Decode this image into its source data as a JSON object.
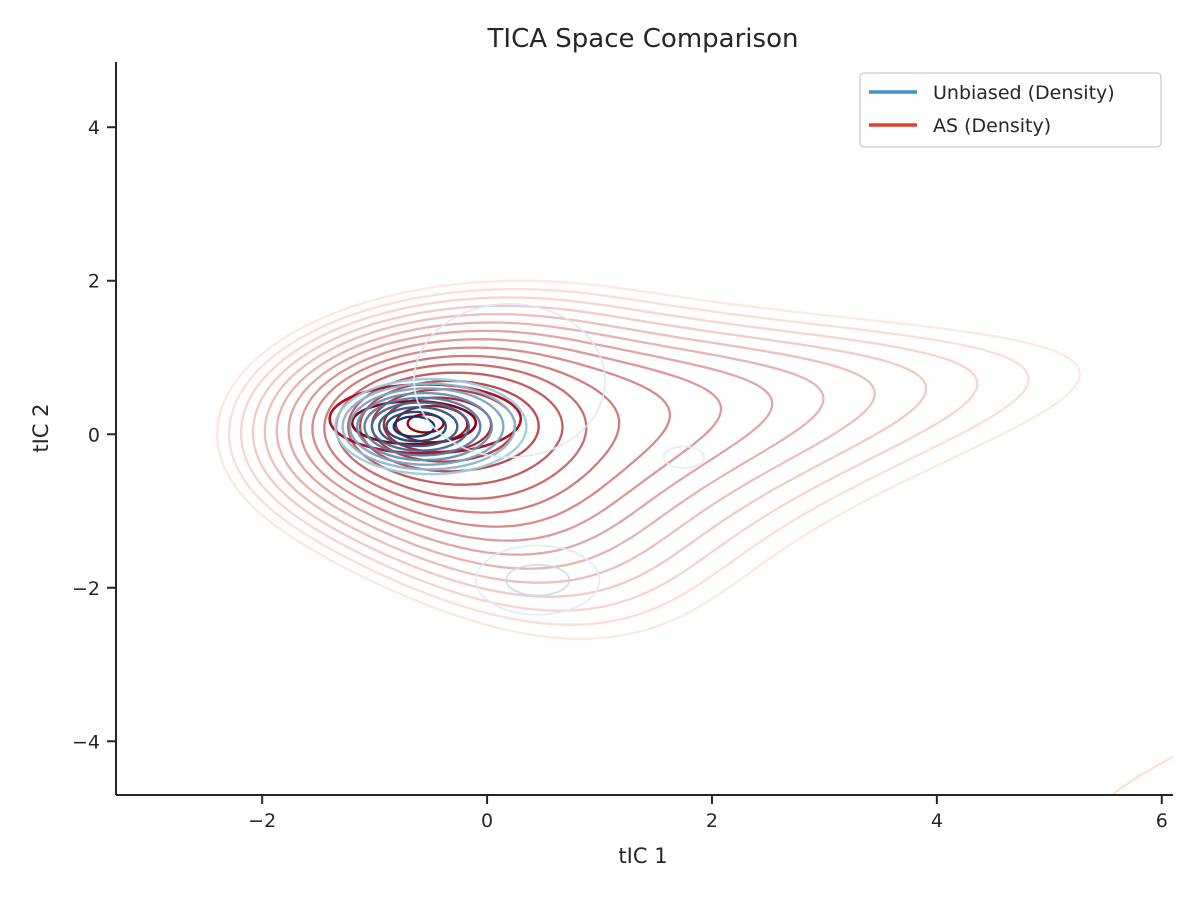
{
  "chart_data": {
    "type": "contour",
    "title": "TICA Space Comparison",
    "xlabel": "tIC 1",
    "ylabel": "tIC 2",
    "xlim": [
      -3.3,
      6.1
    ],
    "ylim": [
      -4.7,
      4.85
    ],
    "xticks": [
      -2,
      0,
      2,
      4,
      6
    ],
    "yticks": [
      -4,
      -2,
      0,
      2,
      4
    ],
    "grid": false,
    "legend_position": "top-right",
    "series": [
      {
        "name": "Unbiased (Density)",
        "color": "#4292c6",
        "colormap": "Blues",
        "density_peaks": [
          {
            "x": -0.65,
            "y": 0.1
          },
          {
            "x": 0.45,
            "y": -1.9
          },
          {
            "x": 1.75,
            "y": -0.3
          }
        ]
      },
      {
        "name": "AS (Density)",
        "color": "#e03f2f",
        "colormap": "Reds",
        "density_peaks": [
          {
            "x": -0.6,
            "y": 0.15
          },
          {
            "x": 3.3,
            "y": 0.75
          }
        ]
      }
    ]
  }
}
